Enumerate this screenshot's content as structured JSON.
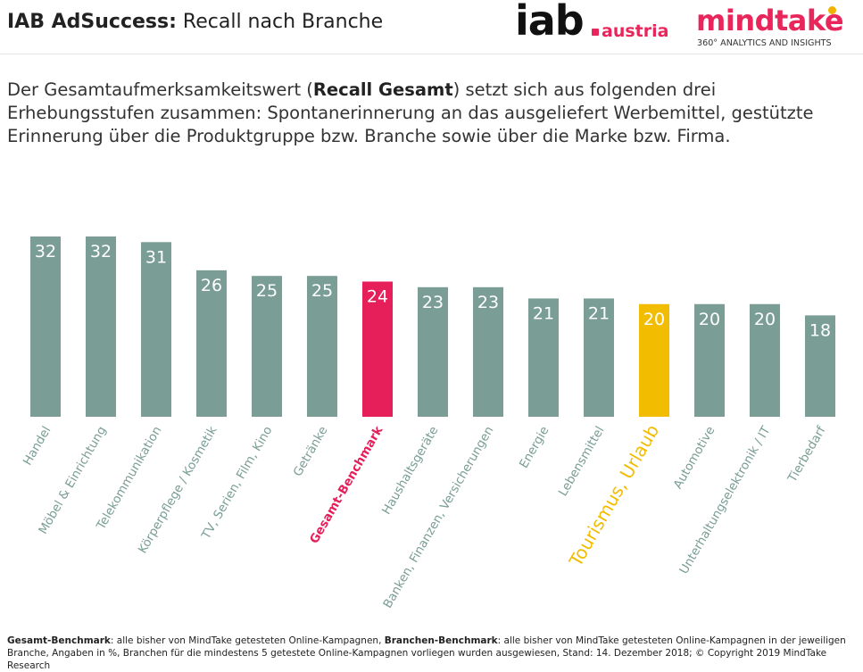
{
  "header": {
    "title_bold": "IAB AdSuccess:",
    "title_rest": "Recall nach Branche",
    "logo_iab_main": "iab",
    "logo_iab_sub": "austria",
    "logo_mindtake": "mindtake",
    "logo_mindtake_tagline": "360° ANALYTICS AND INSIGHTS"
  },
  "intro": {
    "part1": "Der Gesamtaufmerksamkeitswert (",
    "bold": "Recall Gesamt",
    "part2": ") setzt sich aus folgenden drei Erhebungsstufen zusammen: Spontanerinnerung an das ausgeliefert Werbemittel, gestützte Erinnerung über die Produktgruppe bzw. Branche sowie über die Marke bzw. Firma."
  },
  "chart_data": {
    "type": "bar",
    "categories": [
      "Handel",
      "Möbel & Einrichtung",
      "Telekommunikation",
      "Körperpflege / Kosmetik",
      "TV, Serien, Film, Kino",
      "Getränke",
      "Gesamt-Benchmark",
      "Haushaltsgeräte",
      "Banken, Finanzen, Versicherungen",
      "Energie",
      "Lebensmittel",
      "Tourismus, Urlaub",
      "Automotive",
      "Unterhaltungselektronik / IT",
      "Tierbedarf"
    ],
    "values": [
      32,
      32,
      31,
      26,
      25,
      25,
      24,
      23,
      23,
      21,
      21,
      20,
      20,
      20,
      18
    ],
    "ylim": [
      0,
      32
    ],
    "grid": false,
    "legend": "none",
    "colors": {
      "default": "#7a9e96",
      "Gesamt-Benchmark": "#e61f5a",
      "Tourismus, Urlaub": "#f2bd00"
    },
    "label_colors": {
      "default": "#7a9e96",
      "Gesamt-Benchmark": "#e61f5a",
      "Tourismus, Urlaub": "#f2bd00"
    }
  },
  "footnote": {
    "bold1": "Gesamt-Benchmark",
    "text1": ": alle bisher von MindTake getesteten Online-Kampagnen, ",
    "bold2": "Branchen-Benchmark",
    "text2": ": alle bisher von MindTake getesteten Online-Kampagnen in der jeweiligen Branche, Angaben in %, Branchen für die mindestens 5 getestete Online-Kampagnen vorliegen wurden ausgewiesen, Stand: 14. Dezember 2018; © Copyright 2019 MindTake Research"
  }
}
